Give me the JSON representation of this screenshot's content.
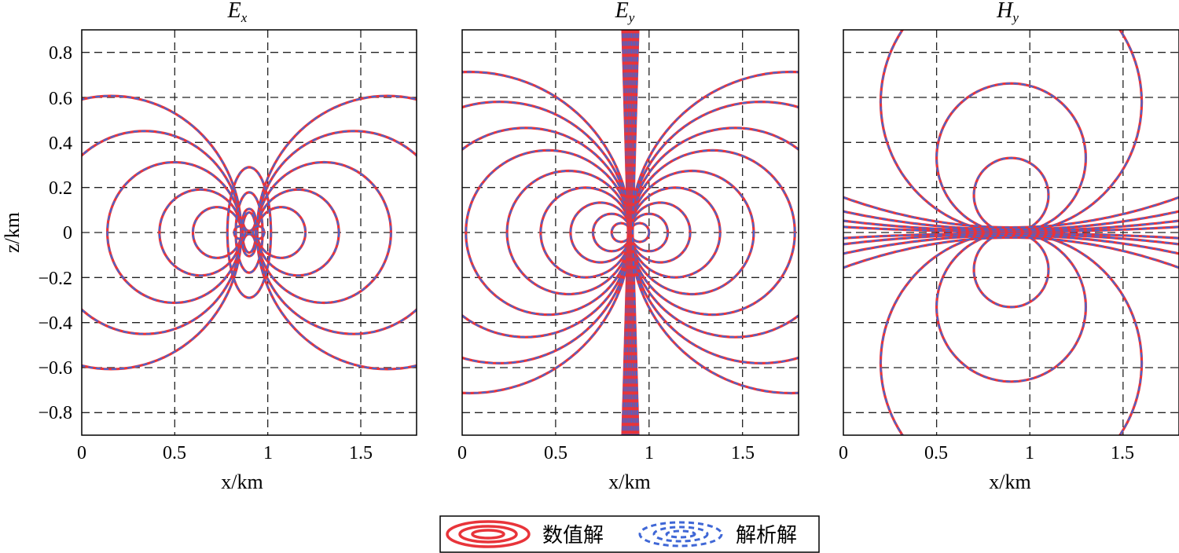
{
  "chart_data": [
    {
      "type": "contour",
      "title": "E",
      "title_sub": "x",
      "xlabel": "x/km",
      "ylabel": "z/km",
      "xlim": [
        0,
        1.8
      ],
      "ylim": [
        -0.9,
        0.9
      ],
      "xticks": [
        "0",
        "0.5",
        "1",
        "1.5"
      ],
      "yticks": [
        "0.8",
        "0.6",
        "0.4",
        "0.2",
        "0",
        "−0.2",
        "−0.4",
        "−0.6",
        "−0.8"
      ],
      "grid": true,
      "source_x": 0.9,
      "source_z": 0
    },
    {
      "type": "contour",
      "title": "E",
      "title_sub": "y",
      "xlabel": "x/km",
      "xlim": [
        0,
        1.8
      ],
      "ylim": [
        -0.9,
        0.9
      ],
      "xticks": [
        "0",
        "0.5",
        "1",
        "1.5"
      ],
      "grid": true,
      "source_x": 0.9,
      "source_z": 0
    },
    {
      "type": "contour",
      "title": "H",
      "title_sub": "y",
      "xlabel": "x/km",
      "xlim": [
        0,
        1.8
      ],
      "ylim": [
        -0.9,
        0.9
      ],
      "xticks": [
        "0",
        "0.5",
        "1",
        "1.5"
      ],
      "grid": true,
      "source_x": 0.9,
      "source_z": 0
    }
  ],
  "legend": {
    "placement": "bottom-center",
    "items": [
      {
        "label": "数值解",
        "color": "#e8343a",
        "style": "solid"
      },
      {
        "label": "解析解",
        "color": "#3f67d6",
        "style": "dashed"
      }
    ]
  }
}
